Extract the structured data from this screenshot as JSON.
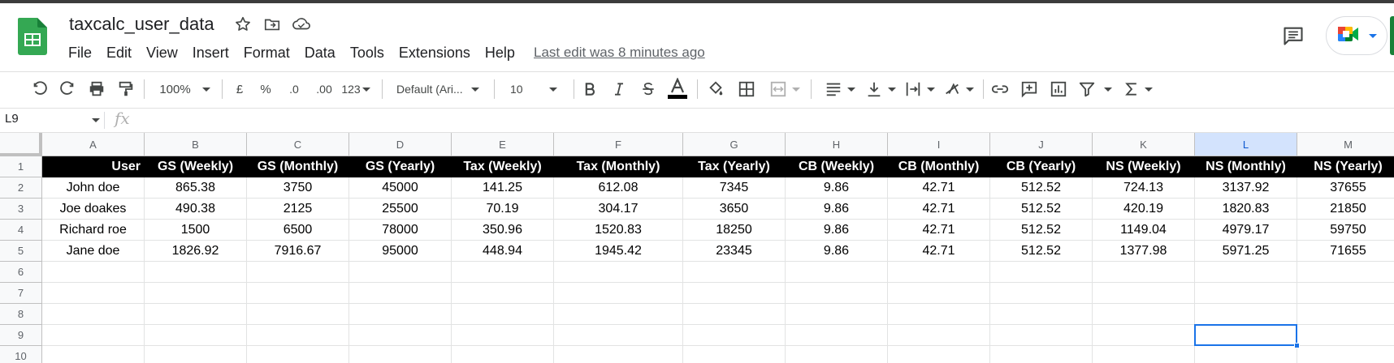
{
  "app": {
    "doc_title": "taxcalc_user_data",
    "last_edit": "Last edit was 8 minutes ago",
    "accent_color": "#188038"
  },
  "menu": [
    "File",
    "Edit",
    "View",
    "Insert",
    "Format",
    "Data",
    "Tools",
    "Extensions",
    "Help"
  ],
  "toolbar": {
    "zoom": "100%",
    "currency": "£",
    "percent": "%",
    "decrease_decimal": ".0",
    "increase_decimal": ".00",
    "number_format": "123",
    "font": "Default (Ari...",
    "font_size": "10"
  },
  "formula_bar": {
    "name_box": "L9",
    "fx": "fx",
    "value": ""
  },
  "sheet": {
    "columns": [
      "A",
      "B",
      "C",
      "D",
      "E",
      "F",
      "G",
      "H",
      "I",
      "J",
      "K",
      "L",
      "M"
    ],
    "selected_column": "L",
    "row_numbers": [
      "1",
      "2",
      "3",
      "4",
      "5",
      "6",
      "7",
      "8",
      "9",
      "10"
    ],
    "header_row": [
      "User",
      "GS (Weekly)",
      "GS (Monthly)",
      "GS (Yearly)",
      "Tax (Weekly)",
      "Tax (Monthly)",
      "Tax  (Yearly)",
      "CB (Weekly)",
      "CB (Monthly)",
      "CB (Yearly)",
      "NS (Weekly)",
      "NS (Monthly)",
      "NS (Yearly)"
    ],
    "rows": [
      [
        "John doe",
        "865.38",
        "3750",
        "45000",
        "141.25",
        "612.08",
        "7345",
        "9.86",
        "42.71",
        "512.52",
        "724.13",
        "3137.92",
        "37655"
      ],
      [
        "Joe doakes",
        "490.38",
        "2125",
        "25500",
        "70.19",
        "304.17",
        "3650",
        "9.86",
        "42.71",
        "512.52",
        "420.19",
        "1820.83",
        "21850"
      ],
      [
        "Richard roe",
        "1500",
        "6500",
        "78000",
        "350.96",
        "1520.83",
        "18250",
        "9.86",
        "42.71",
        "512.52",
        "1149.04",
        "4979.17",
        "59750"
      ],
      [
        "Jane doe",
        "1826.92",
        "7916.67",
        "95000",
        "448.94",
        "1945.42",
        "23345",
        "9.86",
        "42.71",
        "512.52",
        "1377.98",
        "5971.25",
        "71655"
      ]
    ],
    "selected_cell": "L9"
  }
}
